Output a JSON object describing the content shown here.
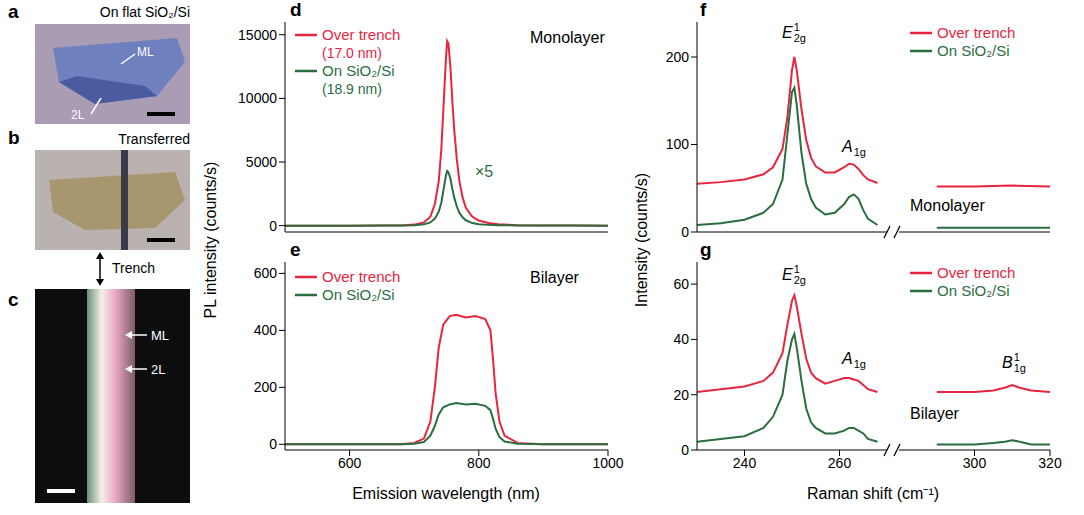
{
  "images": [
    {
      "letter": "a",
      "title": "On flat SiO₂/Si",
      "labels": [
        "ML",
        "2L"
      ]
    },
    {
      "letter": "b",
      "title": "Transferred"
    },
    {
      "letter": "c",
      "labels": [
        "ML",
        "2L"
      ]
    }
  ],
  "trench_label": "Trench",
  "chart_data": [
    {
      "letter": "d",
      "type": "line",
      "ylabel": "PL intensity (counts/s)",
      "annotation": "Monolayer",
      "legend": "upper left",
      "tick_labels": "y",
      "xlim": [
        500,
        1000
      ],
      "xticks": [
        600,
        800,
        1000
      ],
      "ylim": [
        -500,
        16000
      ],
      "yticks": [
        0,
        5000,
        10000,
        15000
      ],
      "series": [
        {
          "name": "Over trench",
          "thickness": "(17.0 nm)",
          "color": "#e8253f",
          "x": [
            500,
            600,
            650,
            680,
            700,
            715,
            725,
            732,
            738,
            742,
            746,
            749,
            751,
            753,
            756,
            759,
            762,
            766,
            770,
            775,
            780,
            790,
            800,
            815,
            830,
            860,
            900,
            950,
            1000
          ],
          "values": [
            0,
            0,
            5,
            20,
            80,
            250,
            700,
            1700,
            3500,
            6000,
            10000,
            13000,
            14500,
            14300,
            12500,
            9800,
            7500,
            5200,
            3500,
            2200,
            1400,
            700,
            400,
            200,
            100,
            40,
            20,
            10,
            0
          ]
        },
        {
          "name": "On SiO₂/Si",
          "thickness": "(18.9 nm)",
          "scale_label": "×5",
          "color": "#2a6e3f",
          "x": [
            500,
            600,
            650,
            680,
            700,
            715,
            725,
            732,
            738,
            742,
            746,
            749,
            751,
            753,
            756,
            759,
            762,
            766,
            770,
            775,
            780,
            790,
            800,
            815,
            830,
            860,
            900,
            950,
            1000
          ],
          "values": [
            0,
            0,
            2,
            5,
            40,
            100,
            250,
            550,
            1100,
            1800,
            3000,
            3900,
            4300,
            4200,
            3700,
            2900,
            2200,
            1500,
            1000,
            650,
            420,
            200,
            110,
            60,
            40,
            20,
            10,
            5,
            0
          ]
        }
      ]
    },
    {
      "letter": "e",
      "type": "line",
      "xlabel": "Emission wavelength (nm)",
      "annotation": "Bilayer",
      "legend": "upper left",
      "xlim": [
        500,
        1000
      ],
      "xticks": [
        600,
        800,
        1000
      ],
      "ylim": [
        -20,
        640
      ],
      "yticks": [
        0,
        200,
        400,
        600
      ],
      "series": [
        {
          "name": "Over trench",
          "color": "#e8253f",
          "x": [
            500,
            680,
            700,
            715,
            725,
            732,
            738,
            745,
            755,
            765,
            780,
            795,
            810,
            818,
            822,
            826,
            832,
            840,
            860,
            900,
            1000
          ],
          "values": [
            0,
            0,
            5,
            20,
            80,
            200,
            340,
            420,
            450,
            455,
            445,
            450,
            440,
            400,
            300,
            180,
            80,
            30,
            5,
            0,
            0
          ]
        },
        {
          "name": "On SiO₂/Si",
          "color": "#2a6e3f",
          "x": [
            500,
            680,
            700,
            715,
            725,
            732,
            738,
            745,
            755,
            765,
            780,
            795,
            810,
            818,
            822,
            826,
            832,
            840,
            860,
            900,
            1000
          ],
          "values": [
            0,
            0,
            2,
            8,
            30,
            65,
            105,
            130,
            140,
            145,
            140,
            142,
            135,
            120,
            90,
            55,
            25,
            10,
            2,
            0,
            0
          ]
        }
      ]
    },
    {
      "letter": "f",
      "type": "line",
      "ylabel": "Intensity (counts/s)",
      "annotation": "Monolayer",
      "legend": "upper right",
      "tick_labels": "y",
      "x_segments": [
        {
          "xlim": [
            230,
            270
          ],
          "xticks": [
            240,
            260
          ]
        },
        {
          "xlim": [
            280,
            320
          ],
          "xticks": [
            300,
            320
          ]
        }
      ],
      "ylim": [
        0,
        240
      ],
      "yticks": [
        0,
        100,
        200
      ],
      "peaks": [
        {
          "base": "E",
          "sup": "1",
          "sub": "2g"
        },
        {
          "base": "A",
          "sub": "1g"
        }
      ],
      "series": [
        {
          "name": "Over trench",
          "color": "#e8253f",
          "x": [
            230,
            235,
            240,
            244,
            246,
            248,
            249,
            250,
            250.5,
            251,
            252,
            253,
            254,
            255,
            257,
            259,
            261,
            262,
            263,
            264,
            265,
            266,
            268,
            290,
            300,
            310,
            320
          ],
          "values": [
            55,
            57,
            60,
            66,
            74,
            95,
            130,
            185,
            200,
            185,
            140,
            105,
            85,
            75,
            68,
            68,
            74,
            78,
            77,
            72,
            65,
            60,
            56,
            52,
            52,
            53,
            52
          ]
        },
        {
          "name": "On SiO₂/Si",
          "color": "#2a6e3f",
          "x": [
            230,
            235,
            240,
            244,
            246,
            248,
            249,
            250,
            250.5,
            251,
            252,
            253,
            254,
            255,
            257,
            259,
            261,
            262,
            263,
            264,
            265,
            266,
            268,
            290,
            300,
            310,
            320
          ],
          "values": [
            8,
            10,
            14,
            22,
            32,
            60,
            110,
            160,
            165,
            145,
            90,
            55,
            38,
            28,
            20,
            22,
            32,
            40,
            43,
            38,
            25,
            15,
            8,
            5,
            5,
            5,
            5
          ]
        }
      ]
    },
    {
      "letter": "g",
      "type": "line",
      "xlabel": "Raman shift (cm⁻¹)",
      "annotation": "Bilayer",
      "legend": "upper right",
      "x_segments": [
        {
          "xlim": [
            230,
            270
          ],
          "xticks": [
            240,
            260
          ]
        },
        {
          "xlim": [
            280,
            320
          ],
          "xticks": [
            300,
            320
          ]
        }
      ],
      "ylim": [
        0,
        68
      ],
      "yticks": [
        0,
        20,
        40,
        60
      ],
      "peaks": [
        {
          "base": "E",
          "sup": "1",
          "sub": "2g"
        },
        {
          "base": "A",
          "sub": "1g"
        },
        {
          "base": "B",
          "sup": "1",
          "sub": "1g"
        }
      ],
      "series": [
        {
          "name": "Over trench",
          "color": "#e8253f",
          "x": [
            230,
            235,
            240,
            244,
            246,
            248,
            249,
            250,
            250.5,
            251,
            252,
            253,
            254,
            255,
            257,
            259,
            261,
            262,
            263,
            264,
            265,
            266,
            268,
            290,
            300,
            305,
            308,
            310,
            312,
            315,
            320
          ],
          "values": [
            21,
            22,
            23,
            25,
            28,
            35,
            45,
            54,
            56,
            52,
            42,
            33,
            28,
            26,
            24,
            25,
            26,
            26,
            25.5,
            25,
            23.5,
            22,
            21,
            21,
            21,
            21.5,
            22.5,
            23.5,
            22.5,
            21.5,
            21
          ]
        },
        {
          "name": "On SiO₂/Si",
          "color": "#2a6e3f",
          "x": [
            230,
            235,
            240,
            244,
            246,
            248,
            249,
            250,
            250.5,
            251,
            252,
            253,
            254,
            255,
            257,
            259,
            261,
            262,
            263,
            264,
            265,
            266,
            268,
            290,
            300,
            305,
            308,
            310,
            312,
            315,
            320
          ],
          "values": [
            3,
            4,
            5,
            8,
            12,
            20,
            32,
            40,
            42,
            37,
            25,
            15,
            10,
            8,
            6,
            6,
            7,
            8,
            8,
            7,
            6,
            4,
            3,
            2,
            2,
            2.5,
            3,
            3.5,
            3,
            2,
            2
          ]
        }
      ]
    }
  ]
}
